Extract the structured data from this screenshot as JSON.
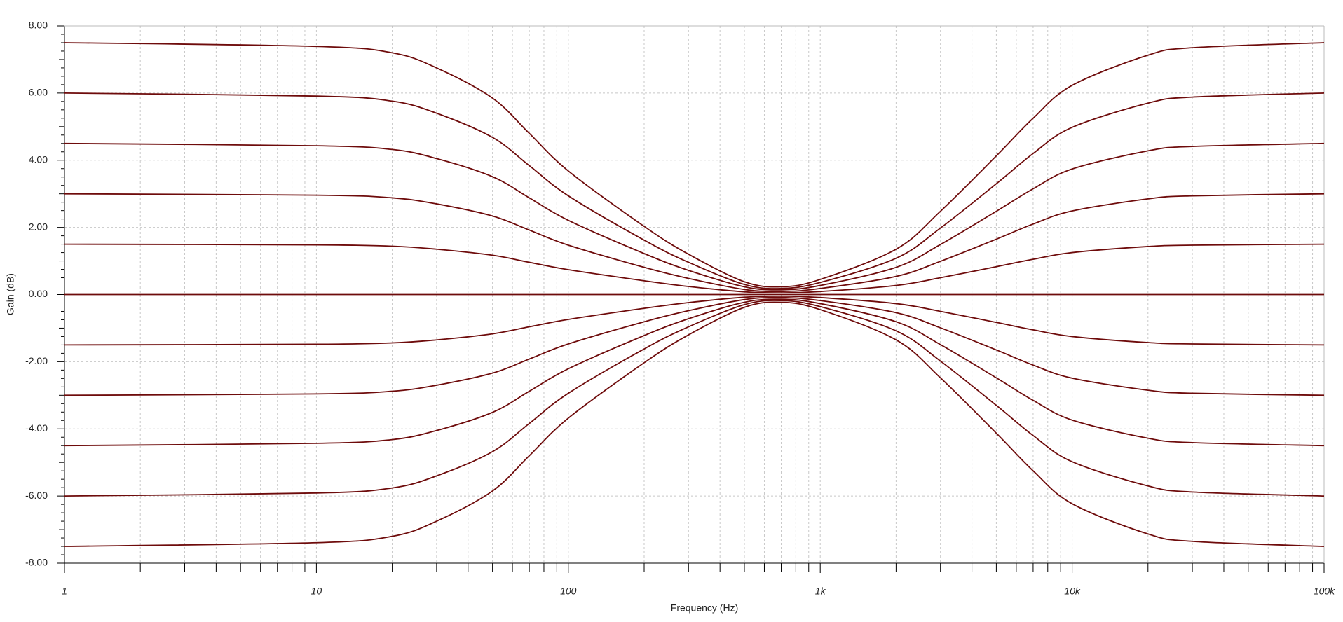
{
  "chart_data": {
    "type": "line",
    "x_label": "Frequency (Hz)",
    "y_label": "Gain (dB)",
    "x_scale": "log",
    "grid": true,
    "color": "#6e0b0b",
    "xlim": [
      1,
      100000
    ],
    "xticks": [
      1,
      10,
      100,
      {
        "value": 1000,
        "label": "1k"
      },
      {
        "value": 10000,
        "label": "10k"
      },
      {
        "value": 100000,
        "label": "100k"
      }
    ],
    "ylim": [
      -8,
      8
    ],
    "yticks": [
      {
        "value": 8,
        "label": "8.00"
      },
      {
        "value": 6,
        "label": "6.00"
      },
      {
        "value": 4,
        "label": "4.00"
      },
      {
        "value": 2,
        "label": "2.00"
      },
      {
        "value": 0,
        "label": "0.00"
      },
      {
        "value": -2,
        "label": "-2.00"
      },
      {
        "value": -4,
        "label": "-4.00"
      },
      {
        "value": -6,
        "label": "-6.00"
      },
      {
        "value": -8,
        "label": "-8.00"
      }
    ],
    "x": [
      1,
      10,
      20,
      30,
      50,
      70,
      100,
      200,
      300,
      500,
      700,
      1000,
      2000,
      3000,
      5000,
      7000,
      10000,
      20000,
      30000,
      100000
    ],
    "series": [
      {
        "values": [
          7.5,
          7.39,
          7.2,
          6.75,
          5.85,
          4.8,
          3.68,
          2.03,
          1.2,
          0.38,
          0.23,
          0.45,
          1.35,
          2.48,
          4.13,
          5.25,
          6.23,
          7.13,
          7.35,
          7.5
        ]
      },
      {
        "values": [
          6,
          5.91,
          5.76,
          5.4,
          4.68,
          3.84,
          2.94,
          1.62,
          0.96,
          0.3,
          0.18,
          0.36,
          1.08,
          1.98,
          3.3,
          4.2,
          4.98,
          5.7,
          5.88,
          6
        ]
      },
      {
        "values": [
          4.5,
          4.43,
          4.32,
          4.05,
          3.51,
          2.88,
          2.21,
          1.22,
          0.72,
          0.23,
          0.14,
          0.27,
          0.81,
          1.49,
          2.48,
          3.15,
          3.74,
          4.28,
          4.41,
          4.5
        ]
      },
      {
        "values": [
          3,
          2.96,
          2.88,
          2.7,
          2.34,
          1.92,
          1.47,
          0.81,
          0.48,
          0.15,
          0.09,
          0.18,
          0.54,
          0.99,
          1.65,
          2.1,
          2.49,
          2.85,
          2.94,
          3
        ]
      },
      {
        "values": [
          1.5,
          1.48,
          1.44,
          1.35,
          1.17,
          0.96,
          0.74,
          0.41,
          0.24,
          0.08,
          0.05,
          0.09,
          0.27,
          0.5,
          0.83,
          1.05,
          1.25,
          1.43,
          1.47,
          1.5
        ]
      },
      {
        "values": [
          0,
          0,
          0,
          0,
          0,
          0,
          0,
          0,
          0,
          0,
          0,
          0,
          0,
          0,
          0,
          0,
          0,
          0,
          0,
          0
        ]
      },
      {
        "values": [
          -1.5,
          -1.48,
          -1.44,
          -1.35,
          -1.17,
          -0.96,
          -0.74,
          -0.41,
          -0.24,
          -0.08,
          -0.05,
          -0.09,
          -0.27,
          -0.5,
          -0.83,
          -1.05,
          -1.25,
          -1.43,
          -1.47,
          -1.5
        ]
      },
      {
        "values": [
          -3,
          -2.96,
          -2.88,
          -2.7,
          -2.34,
          -1.92,
          -1.47,
          -0.81,
          -0.48,
          -0.15,
          -0.09,
          -0.18,
          -0.54,
          -0.99,
          -1.65,
          -2.1,
          -2.49,
          -2.85,
          -2.94,
          -3
        ]
      },
      {
        "values": [
          -4.5,
          -4.43,
          -4.32,
          -4.05,
          -3.51,
          -2.88,
          -2.21,
          -1.22,
          -0.72,
          -0.23,
          -0.14,
          -0.27,
          -0.81,
          -1.49,
          -2.48,
          -3.15,
          -3.74,
          -4.28,
          -4.41,
          -4.5
        ]
      },
      {
        "values": [
          -6,
          -5.91,
          -5.76,
          -5.4,
          -4.68,
          -3.84,
          -2.94,
          -1.62,
          -0.96,
          -0.3,
          -0.18,
          -0.36,
          -1.08,
          -1.98,
          -3.3,
          -4.2,
          -4.98,
          -5.7,
          -5.88,
          -6
        ]
      },
      {
        "values": [
          -7.5,
          -7.39,
          -7.2,
          -6.75,
          -5.85,
          -4.8,
          -3.68,
          -2.03,
          -1.2,
          -0.38,
          -0.23,
          -0.45,
          -1.35,
          -2.48,
          -4.13,
          -5.25,
          -6.23,
          -7.13,
          -7.35,
          -7.5
        ]
      }
    ]
  }
}
